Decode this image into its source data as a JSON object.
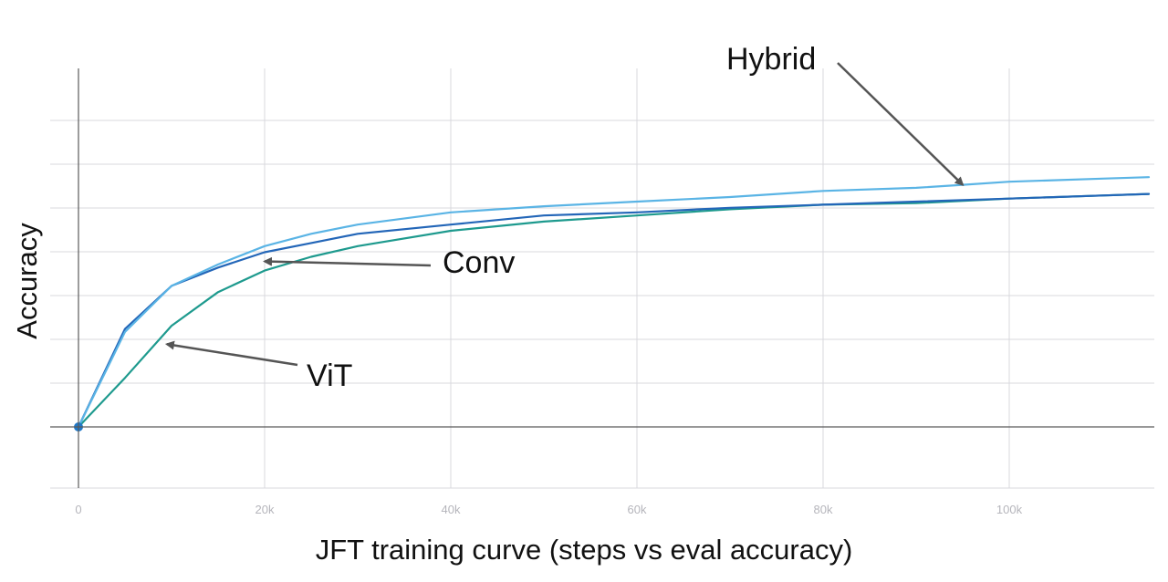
{
  "chart_data": {
    "type": "line",
    "title": "",
    "xlabel": "JFT training curve (steps vs eval accuracy)",
    "ylabel": "Accuracy",
    "xlim": [
      0,
      115000
    ],
    "ylim": [
      -0.1,
      1.05
    ],
    "x_ticks": [
      {
        "value": 0,
        "label": "0"
      },
      {
        "value": 20000,
        "label": "20k"
      },
      {
        "value": 40000,
        "label": "40k"
      },
      {
        "value": 60000,
        "label": "60k"
      },
      {
        "value": 80000,
        "label": "80k"
      },
      {
        "value": 100000,
        "label": "100k"
      }
    ],
    "y_ticks": [
      0,
      0.1428,
      0.2857,
      0.4286,
      0.5714,
      0.7143,
      0.8571,
      1.0
    ],
    "grid": true,
    "start_marker": {
      "x": 0,
      "y": 0,
      "color": "#1f78c8"
    },
    "series": [
      {
        "name": "Hybrid",
        "color": "#5ab4e5",
        "x": [
          0,
          5000,
          10000,
          15000,
          20000,
          25000,
          30000,
          40000,
          50000,
          60000,
          70000,
          80000,
          90000,
          95000,
          100000,
          110000,
          115000
        ],
        "y": [
          0,
          0.31,
          0.46,
          0.53,
          0.59,
          0.63,
          0.66,
          0.7,
          0.72,
          0.735,
          0.75,
          0.77,
          0.78,
          0.79,
          0.8,
          0.81,
          0.815
        ]
      },
      {
        "name": "Conv",
        "color": "#2366b8",
        "x": [
          0,
          5000,
          10000,
          15000,
          20000,
          25000,
          30000,
          40000,
          50000,
          60000,
          70000,
          80000,
          90000,
          100000,
          110000,
          115000
        ],
        "y": [
          0,
          0.32,
          0.46,
          0.52,
          0.57,
          0.6,
          0.63,
          0.66,
          0.69,
          0.7,
          0.715,
          0.725,
          0.735,
          0.745,
          0.755,
          0.76
        ]
      },
      {
        "name": "ViT",
        "color": "#1e9a8e",
        "x": [
          0,
          5000,
          10000,
          15000,
          20000,
          25000,
          30000,
          40000,
          50000,
          60000,
          70000,
          80000,
          90000,
          100000,
          110000,
          115000
        ],
        "y": [
          0,
          0.16,
          0.33,
          0.44,
          0.51,
          0.555,
          0.59,
          0.64,
          0.67,
          0.69,
          0.71,
          0.725,
          0.73,
          0.745,
          0.755,
          0.76
        ]
      }
    ],
    "annotations": [
      {
        "text": "Hybrid",
        "series": "Hybrid",
        "arrow_to": {
          "x": 95000,
          "y": 0.79
        }
      },
      {
        "text": "Conv",
        "series": "Conv",
        "arrow_to": {
          "x": 20000,
          "y": 0.54
        }
      },
      {
        "text": "ViT",
        "series": "ViT",
        "arrow_to": {
          "x": 9500,
          "y": 0.27
        }
      }
    ]
  }
}
